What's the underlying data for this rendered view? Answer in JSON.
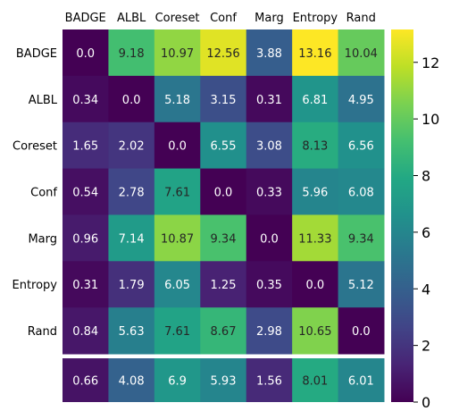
{
  "chart_data": {
    "type": "heatmap",
    "x_categories": [
      "BADGE",
      "ALBL",
      "Coreset",
      "Conf",
      "Marg",
      "Entropy",
      "Rand"
    ],
    "y_categories": [
      "BADGE",
      "ALBL",
      "Coreset",
      "Conf",
      "Marg",
      "Entropy",
      "Rand"
    ],
    "values": [
      [
        0.0,
        9.18,
        10.97,
        12.56,
        3.88,
        13.16,
        10.04
      ],
      [
        0.34,
        0.0,
        5.18,
        3.15,
        0.31,
        6.81,
        4.95
      ],
      [
        1.65,
        2.02,
        0.0,
        6.55,
        3.08,
        8.13,
        6.56
      ],
      [
        0.54,
        2.78,
        7.61,
        0.0,
        0.33,
        5.96,
        6.08
      ],
      [
        0.96,
        7.14,
        10.87,
        9.34,
        0.0,
        11.33,
        9.34
      ],
      [
        0.31,
        1.79,
        6.05,
        1.25,
        0.35,
        0.0,
        5.12
      ],
      [
        0.84,
        5.63,
        7.61,
        8.67,
        2.98,
        10.65,
        0.0
      ]
    ],
    "value_labels": [
      [
        "0.0",
        "9.18",
        "10.97",
        "12.56",
        "3.88",
        "13.16",
        "10.04"
      ],
      [
        "0.34",
        "0.0",
        "5.18",
        "3.15",
        "0.31",
        "6.81",
        "4.95"
      ],
      [
        "1.65",
        "2.02",
        "0.0",
        "6.55",
        "3.08",
        "8.13",
        "6.56"
      ],
      [
        "0.54",
        "2.78",
        "7.61",
        "0.0",
        "0.33",
        "5.96",
        "6.08"
      ],
      [
        "0.96",
        "7.14",
        "10.87",
        "9.34",
        "0.0",
        "11.33",
        "9.34"
      ],
      [
        "0.31",
        "1.79",
        "6.05",
        "1.25",
        "0.35",
        "0.0",
        "5.12"
      ],
      [
        "0.84",
        "5.63",
        "7.61",
        "8.67",
        "2.98",
        "10.65",
        "0.0"
      ]
    ],
    "summary_row": {
      "values": [
        0.66,
        4.08,
        6.9,
        5.93,
        1.56,
        8.01,
        6.01
      ],
      "labels": [
        "0.66",
        "4.08",
        "6.9",
        "5.93",
        "1.56",
        "8.01",
        "6.01"
      ]
    },
    "colormap": "viridis",
    "colorbar": {
      "range": [
        0,
        13.16
      ],
      "ticks": [
        0,
        2,
        4,
        6,
        8,
        10,
        12
      ],
      "tick_labels": [
        "0",
        "2",
        "4",
        "6",
        "8",
        "10",
        "12"
      ]
    },
    "x_axis_position": "top"
  }
}
